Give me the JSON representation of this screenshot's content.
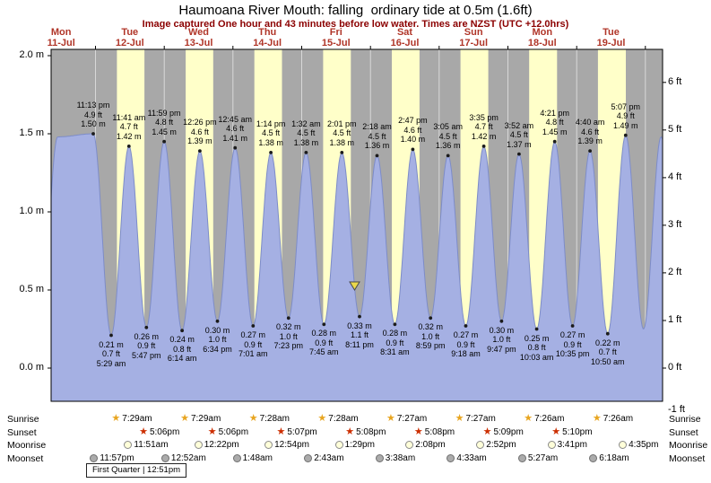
{
  "title": "Haumoana River Mouth: falling  ordinary tide at 0.5m (1.6ft)",
  "subtitle": "Image captured One hour and 43 minutes before low water. Times are NZST (UTC +12.0hrs)",
  "colors": {
    "plot_bg": "#a8a8a8",
    "day_band": "#ffffc9",
    "tide_fill": "#a5b0e3",
    "tide_line": "#7d8cc8",
    "day_label": "#b03528",
    "subtitle": "#8b0000",
    "marker": "#ead84a",
    "midnight_line": "#ffffff"
  },
  "days": [
    {
      "name": "Mon",
      "date": "11-Jul"
    },
    {
      "name": "Tue",
      "date": "12-Jul"
    },
    {
      "name": "Wed",
      "date": "13-Jul"
    },
    {
      "name": "Thu",
      "date": "14-Jul"
    },
    {
      "name": "Fri",
      "date": "15-Jul"
    },
    {
      "name": "Sat",
      "date": "16-Jul"
    },
    {
      "name": "Sun",
      "date": "17-Jul"
    },
    {
      "name": "Mon",
      "date": "18-Jul"
    },
    {
      "name": "Tue",
      "date": "19-Jul"
    }
  ],
  "axes": {
    "left": [
      {
        "label": "2.0 m",
        "m": 2.0
      },
      {
        "label": "1.5 m",
        "m": 1.5
      },
      {
        "label": "1.0 m",
        "m": 1.0
      },
      {
        "label": "0.5 m",
        "m": 0.5
      },
      {
        "label": "0.0 m",
        "m": 0.0
      }
    ],
    "right": [
      {
        "label": "6 ft",
        "ft": 6
      },
      {
        "label": "5 ft",
        "ft": 5
      },
      {
        "label": "4 ft",
        "ft": 4
      },
      {
        "label": "3 ft",
        "ft": 3
      },
      {
        "label": "2 ft",
        "ft": 2
      },
      {
        "label": "1 ft",
        "ft": 1
      },
      {
        "label": "0 ft",
        "ft": 0
      },
      {
        "label": "-1 ft",
        "ft": -1
      }
    ]
  },
  "chart_data": {
    "type": "area",
    "y_unit": "m",
    "ylim_m": [
      -0.21,
      2.04
    ],
    "x_start": "Mon 11-Jul ~08:30 NZST",
    "x_end": "Wed 20-Jul ~06:00 NZST",
    "tides": [
      {
        "kind": "high",
        "day": 0,
        "time": "11:13 pm",
        "ft": 4.9,
        "m": 1.5
      },
      {
        "kind": "low",
        "day": 1,
        "time": "5:29 am",
        "ft": 0.7,
        "m": 0.21
      },
      {
        "kind": "high",
        "day": 1,
        "time": "11:41 am",
        "ft": 4.7,
        "m": 1.42
      },
      {
        "kind": "low",
        "day": 1,
        "time": "5:47 pm",
        "ft": 0.9,
        "m": 0.26
      },
      {
        "kind": "high",
        "day": 1,
        "time": "11:59 pm",
        "ft": 4.8,
        "m": 1.45
      },
      {
        "kind": "low",
        "day": 2,
        "time": "6:14 am",
        "ft": 0.8,
        "m": 0.24
      },
      {
        "kind": "high",
        "day": 2,
        "time": "12:26 pm",
        "ft": 4.6,
        "m": 1.39
      },
      {
        "kind": "low",
        "day": 2,
        "time": "6:34 pm",
        "ft": 1.0,
        "m": 0.3
      },
      {
        "kind": "high",
        "day": 3,
        "time": "12:45 am",
        "ft": 4.6,
        "m": 1.41
      },
      {
        "kind": "low",
        "day": 3,
        "time": "7:01 am",
        "ft": 0.9,
        "m": 0.27
      },
      {
        "kind": "high",
        "day": 3,
        "time": "1:14 pm",
        "ft": 4.5,
        "m": 1.38
      },
      {
        "kind": "low",
        "day": 3,
        "time": "7:23 pm",
        "ft": 1.0,
        "m": 0.32
      },
      {
        "kind": "high",
        "day": 4,
        "time": "1:32 am",
        "ft": 4.5,
        "m": 1.38
      },
      {
        "kind": "low",
        "day": 4,
        "time": "7:45 am",
        "ft": 0.9,
        "m": 0.28
      },
      {
        "kind": "high",
        "day": 4,
        "time": "2:01 pm",
        "ft": 4.5,
        "m": 1.38
      },
      {
        "kind": "low",
        "day": 4,
        "time": "8:11 pm",
        "ft": 1.1,
        "m": 0.33
      },
      {
        "kind": "high",
        "day": 5,
        "time": "2:18 am",
        "ft": 4.5,
        "m": 1.36
      },
      {
        "kind": "low",
        "day": 5,
        "time": "8:31 am",
        "ft": 0.9,
        "m": 0.28
      },
      {
        "kind": "high",
        "day": 5,
        "time": "2:47 pm",
        "ft": 4.6,
        "m": 1.4
      },
      {
        "kind": "low",
        "day": 5,
        "time": "8:59 pm",
        "ft": 1.0,
        "m": 0.32
      },
      {
        "kind": "high",
        "day": 6,
        "time": "3:05 am",
        "ft": 4.5,
        "m": 1.36
      },
      {
        "kind": "low",
        "day": 6,
        "time": "9:18 am",
        "ft": 0.9,
        "m": 0.27
      },
      {
        "kind": "high",
        "day": 6,
        "time": "3:35 pm",
        "ft": 4.7,
        "m": 1.42
      },
      {
        "kind": "low",
        "day": 6,
        "time": "9:47 pm",
        "ft": 1.0,
        "m": 0.3
      },
      {
        "kind": "high",
        "day": 7,
        "time": "3:52 am",
        "ft": 4.5,
        "m": 1.37
      },
      {
        "kind": "low",
        "day": 7,
        "time": "10:03 am",
        "ft": 0.8,
        "m": 0.25
      },
      {
        "kind": "high",
        "day": 7,
        "time": "4:21 pm",
        "ft": 4.8,
        "m": 1.45
      },
      {
        "kind": "low",
        "day": 7,
        "time": "10:35 pm",
        "ft": 0.9,
        "m": 0.27
      },
      {
        "kind": "high",
        "day": 8,
        "time": "4:40 am",
        "ft": 4.6,
        "m": 1.39
      },
      {
        "kind": "low",
        "day": 8,
        "time": "10:50 am",
        "ft": 0.7,
        "m": 0.22
      },
      {
        "kind": "high",
        "day": 8,
        "time": "5:07 pm",
        "ft": 4.9,
        "m": 1.49
      }
    ],
    "edge_shape": [
      {
        "day": 0,
        "time": "4:35 am",
        "m": 0.2
      },
      {
        "day": 0,
        "time": "10:49 am",
        "m": 1.48
      },
      {
        "day": 8,
        "time": "11:20 pm",
        "m": 0.25
      },
      {
        "day": 9,
        "time": "5:30 am",
        "m": 1.48
      },
      {
        "day": 9,
        "time": "11:45 am",
        "m": 0.3
      }
    ],
    "day_bands": [
      {
        "day": 1,
        "from": "7:29 am",
        "to": "5:06 pm"
      },
      {
        "day": 2,
        "from": "7:29 am",
        "to": "5:06 pm"
      },
      {
        "day": 3,
        "from": "7:28 am",
        "to": "5:07 pm"
      },
      {
        "day": 4,
        "from": "7:28 am",
        "to": "5:08 pm"
      },
      {
        "day": 5,
        "from": "7:27 am",
        "to": "5:08 pm"
      },
      {
        "day": 6,
        "from": "7:27 am",
        "to": "5:09 pm"
      },
      {
        "day": 7,
        "from": "7:26 am",
        "to": "5:10 pm"
      },
      {
        "day": 8,
        "from": "7:26 am",
        "to": "5:10 pm"
      }
    ],
    "current_marker": {
      "day": 4,
      "time": "6:28 pm",
      "m": 0.5
    }
  },
  "sun_moon": {
    "rows": [
      {
        "label": "Sunrise",
        "icon": "sunrise-star",
        "shape": "star",
        "color": "#e8a520",
        "border": "#9c6d00",
        "events": [
          {
            "day": 1,
            "time": "7:29am"
          },
          {
            "day": 2,
            "time": "7:29am"
          },
          {
            "day": 3,
            "time": "7:28am"
          },
          {
            "day": 4,
            "time": "7:28am"
          },
          {
            "day": 5,
            "time": "7:27am"
          },
          {
            "day": 6,
            "time": "7:27am"
          },
          {
            "day": 7,
            "time": "7:26am"
          },
          {
            "day": 8,
            "time": "7:26am"
          }
        ]
      },
      {
        "label": "Sunset",
        "icon": "sunset-star",
        "shape": "star",
        "color": "#cc2e00",
        "border": "#7a1a00",
        "events": [
          {
            "day": 1,
            "time": "5:06pm"
          },
          {
            "day": 2,
            "time": "5:06pm"
          },
          {
            "day": 3,
            "time": "5:07pm"
          },
          {
            "day": 4,
            "time": "5:08pm"
          },
          {
            "day": 5,
            "time": "5:08pm"
          },
          {
            "day": 6,
            "time": "5:09pm"
          },
          {
            "day": 7,
            "time": "5:10pm"
          }
        ]
      },
      {
        "label": "Moonrise",
        "icon": "moonrise-circle",
        "shape": "circle",
        "color": "#ffffd9",
        "border": "#8a8a8a",
        "events": [
          {
            "day": 1,
            "time": "11:51am"
          },
          {
            "day": 2,
            "time": "12:22pm"
          },
          {
            "day": 3,
            "time": "12:54pm"
          },
          {
            "day": 4,
            "time": "1:29pm"
          },
          {
            "day": 5,
            "time": "2:08pm"
          },
          {
            "day": 6,
            "time": "2:52pm"
          },
          {
            "day": 7,
            "time": "3:41pm"
          },
          {
            "day": 8,
            "time": "4:35pm"
          }
        ]
      },
      {
        "label": "Moonset",
        "icon": "moonset-circle",
        "shape": "circle",
        "color": "#ababab",
        "border": "#6f6f6f",
        "events": [
          {
            "day": 0,
            "time": "11:57pm"
          },
          {
            "day": 2,
            "time": "12:52am"
          },
          {
            "day": 3,
            "time": "1:48am"
          },
          {
            "day": 4,
            "time": "2:43am"
          },
          {
            "day": 5,
            "time": "3:38am"
          },
          {
            "day": 6,
            "time": "4:33am"
          },
          {
            "day": 7,
            "time": "5:27am"
          },
          {
            "day": 8,
            "time": "6:18am"
          }
        ]
      }
    ],
    "moon_phase": "First Quarter | 12:51pm"
  }
}
